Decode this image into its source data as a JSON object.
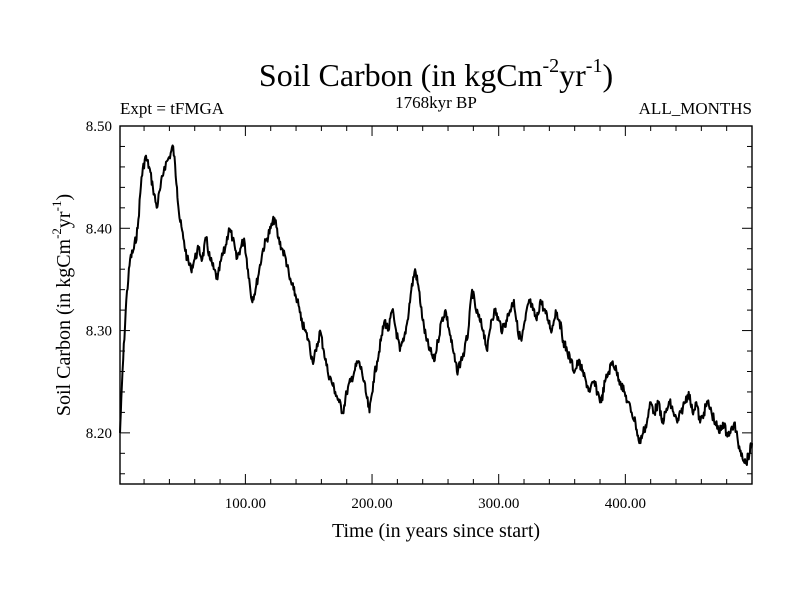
{
  "chart_data": {
    "type": "line",
    "title": "Soil Carbon (in kgCm",
    "title_sup1": "-2",
    "title_mid": "yr",
    "title_sup2": "-1",
    "title_end": ")",
    "subtitle_left": "Expt = tFMGA",
    "subtitle_center": "1768kyr BP",
    "subtitle_right": "ALL_MONTHS",
    "xlabel": "Time (in years since start)",
    "ylabel": "Soil Carbon (in kgCm",
    "ylabel_sup1": "-2",
    "ylabel_mid": "yr",
    "ylabel_sup2": "-1",
    "ylabel_end": ")",
    "xlim": [
      1,
      500
    ],
    "ylim": [
      8.15,
      8.5
    ],
    "xticks": [
      {
        "value": 100,
        "label": "100.00"
      },
      {
        "value": 200,
        "label": "200.00"
      },
      {
        "value": 300,
        "label": "300.00"
      },
      {
        "value": 400,
        "label": "400.00"
      }
    ],
    "yticks": [
      {
        "value": 8.2,
        "label": "8.20"
      },
      {
        "value": 8.3,
        "label": "8.30"
      },
      {
        "value": 8.4,
        "label": "8.40"
      },
      {
        "value": 8.5,
        "label": "8.50"
      }
    ],
    "line_color": "#000000",
    "series": [
      {
        "x": [
          1,
          3,
          6,
          9,
          12,
          15,
          18,
          21,
          24,
          27,
          30,
          33,
          36,
          40,
          43,
          46,
          48,
          51,
          54,
          57,
          60,
          63,
          66,
          69,
          72,
          75,
          78,
          81,
          84,
          87,
          90,
          93,
          96,
          99,
          102,
          105,
          108,
          111,
          114,
          117,
          120,
          123,
          126,
          129,
          132,
          135,
          138,
          141,
          144,
          147,
          150,
          153,
          156,
          159,
          162,
          165,
          168,
          171,
          174,
          177,
          180,
          183,
          186,
          189,
          192,
          195,
          198,
          201,
          204,
          207,
          210,
          213,
          216,
          219,
          222,
          225,
          228,
          231,
          234,
          237,
          240,
          243,
          246,
          249,
          252,
          255,
          258,
          261,
          264,
          267,
          270,
          273,
          276,
          279,
          282,
          285,
          288,
          291,
          294,
          297,
          300,
          303,
          306,
          309,
          312,
          315,
          318,
          321,
          324,
          327,
          330,
          333,
          336,
          339,
          342,
          345,
          348,
          351,
          354,
          357,
          360,
          363,
          366,
          369,
          372,
          375,
          378,
          381,
          384,
          387,
          390,
          393,
          396,
          399,
          402,
          405,
          408,
          411,
          414,
          417,
          420,
          423,
          426,
          429,
          432,
          435,
          438,
          441,
          444,
          447,
          450,
          453,
          456,
          459,
          462,
          465,
          468,
          471,
          474,
          477,
          480,
          483,
          486,
          489,
          492,
          495,
          498,
          500
        ],
        "values": [
          8.2,
          8.26,
          8.33,
          8.37,
          8.38,
          8.4,
          8.45,
          8.47,
          8.46,
          8.44,
          8.42,
          8.44,
          8.46,
          8.47,
          8.48,
          8.44,
          8.41,
          8.39,
          8.37,
          8.36,
          8.37,
          8.38,
          8.37,
          8.39,
          8.37,
          8.36,
          8.35,
          8.37,
          8.38,
          8.4,
          8.39,
          8.37,
          8.38,
          8.39,
          8.36,
          8.33,
          8.34,
          8.36,
          8.38,
          8.39,
          8.4,
          8.41,
          8.39,
          8.38,
          8.37,
          8.35,
          8.34,
          8.33,
          8.31,
          8.3,
          8.29,
          8.27,
          8.28,
          8.3,
          8.28,
          8.26,
          8.25,
          8.24,
          8.23,
          8.22,
          8.24,
          8.25,
          8.26,
          8.27,
          8.26,
          8.24,
          8.22,
          8.25,
          8.27,
          8.29,
          8.31,
          8.3,
          8.32,
          8.3,
          8.28,
          8.29,
          8.31,
          8.34,
          8.36,
          8.34,
          8.31,
          8.29,
          8.28,
          8.27,
          8.29,
          8.31,
          8.32,
          8.3,
          8.28,
          8.26,
          8.27,
          8.28,
          8.3,
          8.34,
          8.32,
          8.31,
          8.3,
          8.28,
          8.31,
          8.32,
          8.31,
          8.3,
          8.31,
          8.32,
          8.33,
          8.3,
          8.29,
          8.31,
          8.33,
          8.32,
          8.31,
          8.33,
          8.32,
          8.31,
          8.3,
          8.32,
          8.31,
          8.29,
          8.28,
          8.27,
          8.26,
          8.27,
          8.26,
          8.25,
          8.24,
          8.25,
          8.24,
          8.23,
          8.25,
          8.26,
          8.27,
          8.26,
          8.25,
          8.24,
          8.23,
          8.22,
          8.21,
          8.19,
          8.2,
          8.21,
          8.23,
          8.22,
          8.23,
          8.21,
          8.22,
          8.23,
          8.22,
          8.21,
          8.22,
          8.23,
          8.24,
          8.22,
          8.23,
          8.21,
          8.22,
          8.23,
          8.22,
          8.21,
          8.2,
          8.21,
          8.2,
          8.2,
          8.21,
          8.19,
          8.18,
          8.17,
          8.18,
          8.19
        ]
      }
    ]
  }
}
